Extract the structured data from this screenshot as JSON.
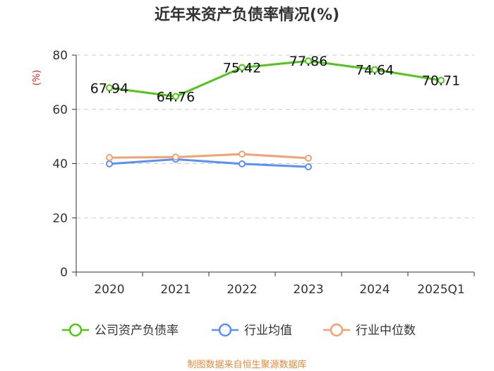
{
  "chart_data": {
    "type": "line",
    "title": "近年来资产负债率情况(%)",
    "ylabel": "(%)",
    "xlabel": "",
    "ylim": [
      0,
      80
    ],
    "yticks": [
      0,
      20,
      40,
      60,
      80
    ],
    "categories": [
      "2020",
      "2021",
      "2022",
      "2023",
      "2024",
      "2025Q1"
    ],
    "grid": true,
    "legend_position": "bottom",
    "series": [
      {
        "name": "公司资产负债率",
        "color": "#52c41a",
        "values": [
          67.94,
          64.76,
          75.42,
          77.86,
          74.64,
          70.71
        ],
        "labels": [
          "67.94",
          "64.76",
          "75.42",
          "77.86",
          "74.64",
          "70.71"
        ]
      },
      {
        "name": "行业均值",
        "color": "#5b8ff9",
        "values": [
          39.9,
          41.6,
          39.9,
          38.8,
          null,
          null
        ]
      },
      {
        "name": "行业中位数",
        "color": "#f4a073",
        "values": [
          42.2,
          42.4,
          43.5,
          42.0,
          null,
          null
        ]
      }
    ]
  },
  "source": "制图数据来自恒生聚源数据库"
}
